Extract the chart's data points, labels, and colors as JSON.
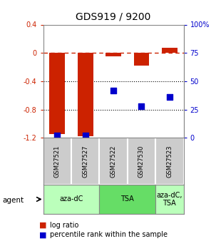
{
  "title": "GDS919 / 9200",
  "samples": [
    "GSM27521",
    "GSM27527",
    "GSM27522",
    "GSM27530",
    "GSM27523"
  ],
  "log_ratios": [
    -1.15,
    -1.18,
    -0.05,
    -0.18,
    0.07
  ],
  "percentile_ranks": [
    2,
    2,
    42,
    28,
    36
  ],
  "ylim_left": [
    -1.2,
    0.4
  ],
  "ylim_right": [
    0,
    100
  ],
  "yticks_left": [
    -1.2,
    -0.8,
    -0.4,
    0.0,
    0.4
  ],
  "ytick_labels_left": [
    "-1.2",
    "-0.8",
    "-0.4",
    "0",
    "0.4"
  ],
  "yticks_right": [
    0,
    25,
    50,
    75,
    100
  ],
  "ytick_labels_right": [
    "0",
    "25",
    "50",
    "75",
    "100%"
  ],
  "agent_groups": [
    {
      "label": "aza-dC",
      "start": 0,
      "end": 1,
      "color": "#bbffbb"
    },
    {
      "label": "TSA",
      "start": 2,
      "end": 3,
      "color": "#66dd66"
    },
    {
      "label": "aza-dC,\nTSA",
      "start": 4,
      "end": 4,
      "color": "#bbffbb"
    }
  ],
  "bar_color": "#cc2200",
  "dot_color": "#0000cc",
  "dashed_line_color": "#cc2200",
  "dotted_line_color": "#000000",
  "bg_color": "#ffffff",
  "left_axis_color": "#cc2200",
  "right_axis_color": "#0000cc",
  "bar_width": 0.55,
  "dot_size": 35,
  "sample_box_color": "#cccccc",
  "agent_aza_color": "#bbffbb",
  "agent_tsa_color": "#66dd66",
  "agent_azatsa_color": "#bbffbb"
}
